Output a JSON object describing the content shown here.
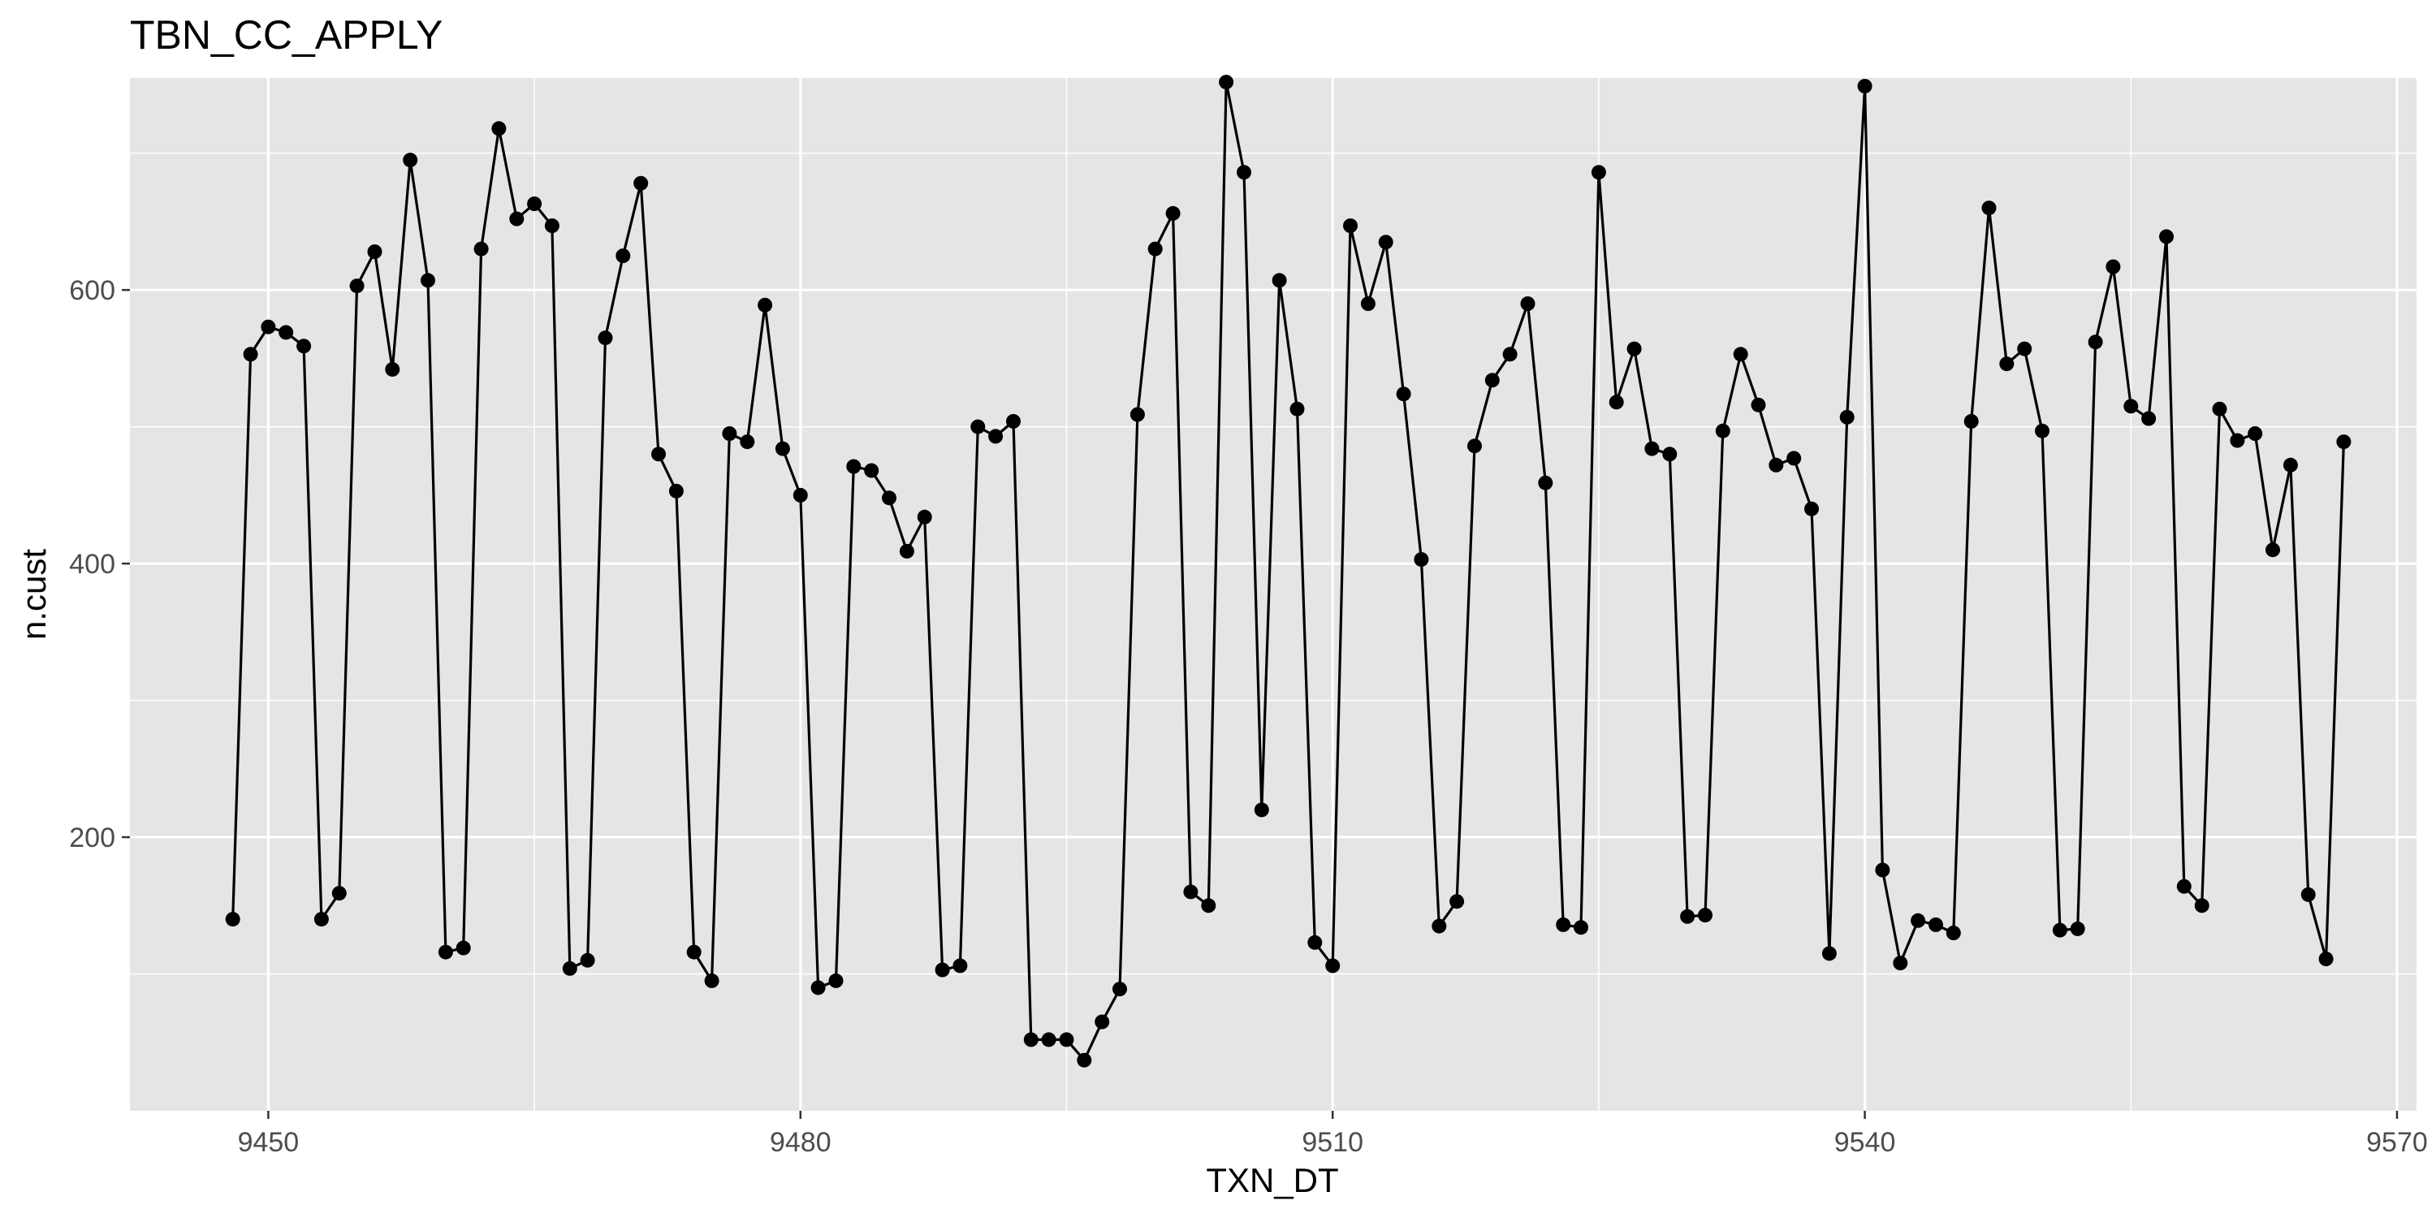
{
  "chart_data": {
    "type": "line",
    "title": "TBN_CC_APPLY",
    "xlabel": "TXN_DT",
    "ylabel": "n.cust",
    "xlim": [
      9442.2,
      9571.1
    ],
    "ylim": [
      0,
      755
    ],
    "x_ticks": [
      9450,
      9480,
      9510,
      9540,
      9570
    ],
    "y_ticks": [
      200,
      400,
      600
    ],
    "grid": true,
    "legend": "none",
    "colors": {
      "panel": "#E5E5E5",
      "grid": "#FFFFFF",
      "line": "#000000",
      "point": "#000000",
      "tick": "#4D4D4D"
    },
    "series": [
      {
        "x": [
          9448,
          9449,
          9450,
          9451,
          9452,
          9453,
          9454,
          9455,
          9456,
          9457,
          9458,
          9459,
          9460,
          9461,
          9462,
          9463,
          9464,
          9465,
          9466,
          9467,
          9468,
          9469,
          9470,
          9471,
          9472,
          9473,
          9474,
          9475,
          9476,
          9477,
          9478,
          9479,
          9480,
          9481,
          9482,
          9483,
          9484,
          9485,
          9486,
          9487,
          9488,
          9489,
          9490,
          9491,
          9492,
          9493,
          9494,
          9495,
          9496,
          9497,
          9498,
          9499,
          9500,
          9501,
          9502,
          9503,
          9504,
          9505,
          9506,
          9507,
          9508,
          9509,
          9510,
          9511,
          9512,
          9513,
          9514,
          9515,
          9516,
          9517,
          9518,
          9519,
          9520,
          9521,
          9522,
          9523,
          9524,
          9525,
          9526,
          9527,
          9528,
          9529,
          9530,
          9531,
          9532,
          9533,
          9534,
          9535,
          9536,
          9537,
          9538,
          9539,
          9540,
          9541,
          9542,
          9543,
          9544,
          9545,
          9546,
          9547,
          9548,
          9549,
          9550,
          9551,
          9552,
          9553,
          9554,
          9555,
          9556,
          9557,
          9558,
          9559,
          9560,
          9561,
          9562,
          9563,
          9564,
          9565,
          9566,
          9567
        ],
        "y": [
          140,
          553,
          573,
          569,
          559,
          140,
          159,
          603,
          628,
          542,
          695,
          607,
          116,
          119,
          630,
          718,
          652,
          663,
          647,
          104,
          110,
          565,
          625,
          678,
          480,
          453,
          116,
          95,
          495,
          489,
          589,
          484,
          450,
          90,
          95,
          471,
          468,
          448,
          409,
          434,
          103,
          106,
          500,
          493,
          504,
          52,
          52,
          52,
          37,
          65,
          89,
          509,
          630,
          656,
          160,
          150,
          752,
          686,
          220,
          607,
          513,
          123,
          106,
          647,
          590,
          635,
          524,
          403,
          135,
          153,
          486,
          534,
          553,
          590,
          459,
          136,
          134,
          686,
          518,
          557,
          484,
          480,
          142,
          143,
          497,
          553,
          516,
          472,
          477,
          440,
          115,
          507,
          749,
          176,
          108,
          139,
          136,
          130,
          504,
          660,
          546,
          557,
          497,
          132,
          133,
          562,
          617,
          515,
          506,
          639,
          164,
          150,
          513,
          490,
          495,
          410,
          472,
          158,
          111,
          489
        ]
      }
    ]
  }
}
